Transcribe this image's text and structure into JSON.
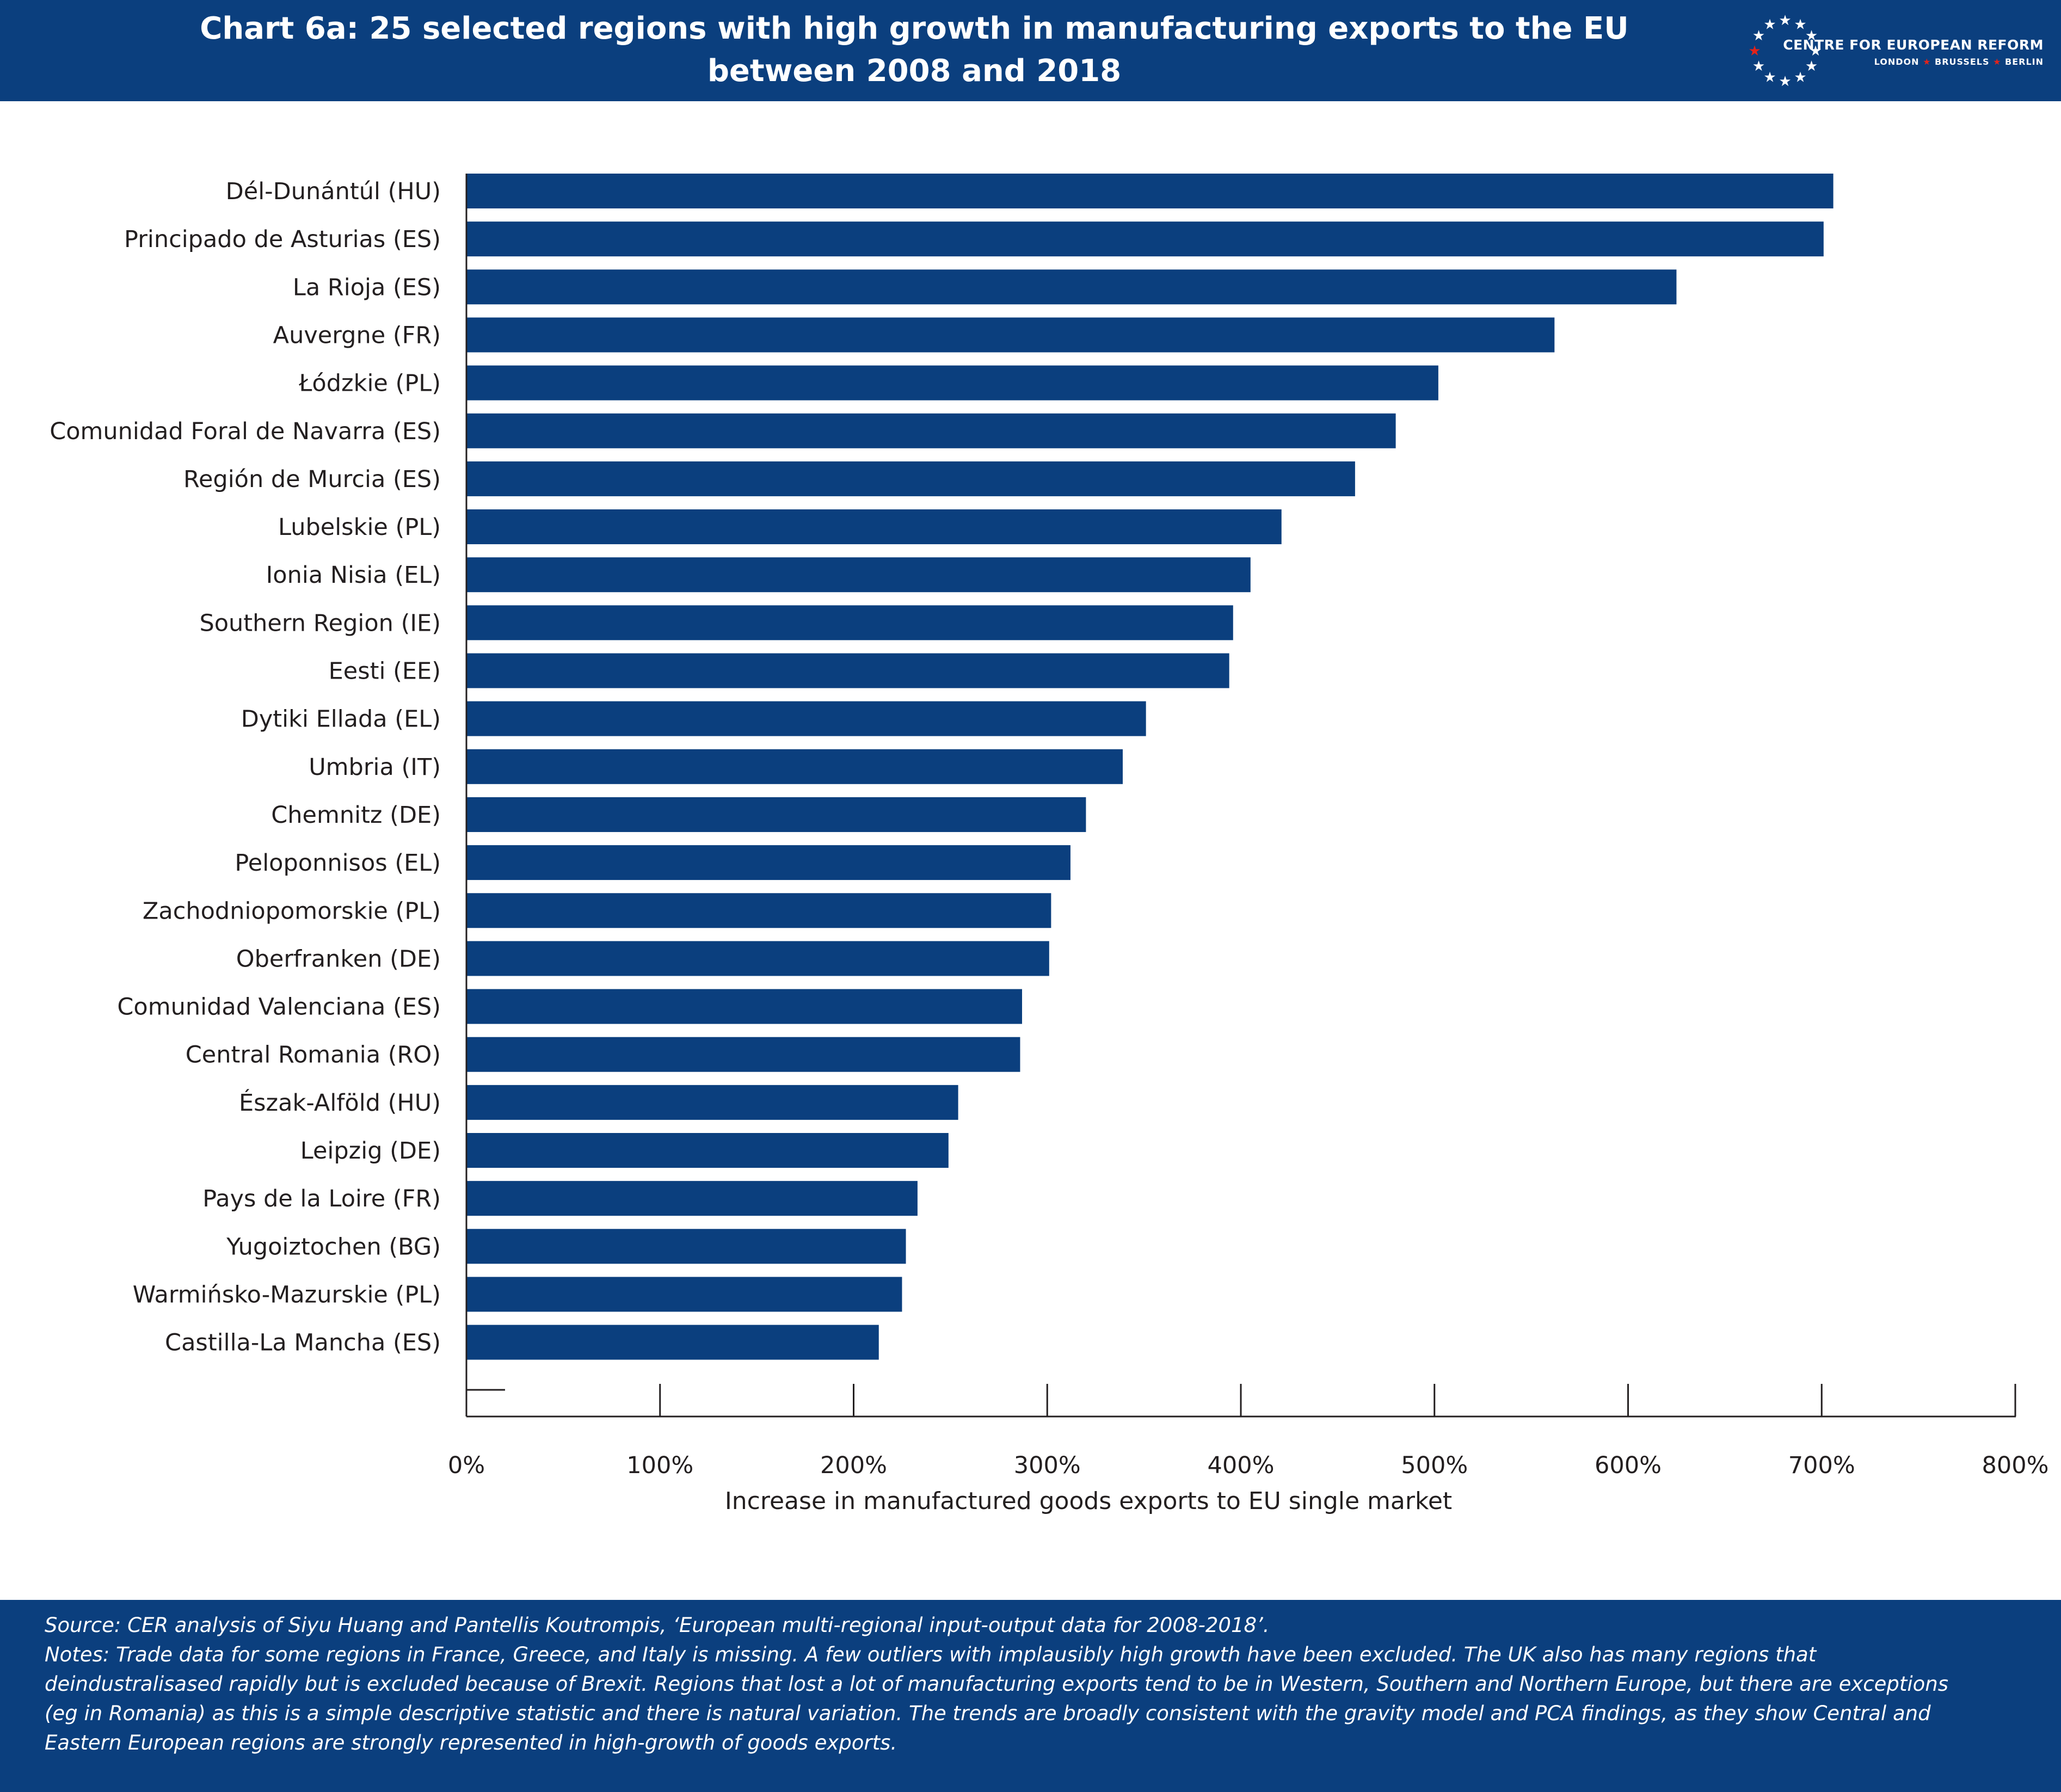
{
  "header": {
    "title_line1": "Chart 6a: 25 selected regions with high growth in manufacturing exports  to the EU",
    "title_line2": "between 2008 and 2018",
    "logo_name": "CENTRE FOR EUROPEAN REFORM",
    "logo_cities": [
      "LONDON",
      "BRUSSELS",
      "BERLIN"
    ]
  },
  "colors": {
    "brand_blue": "#0b3f7e",
    "bar": "#0b3f7e",
    "logo_star_accent": "#e2231a"
  },
  "chart_data": {
    "type": "bar",
    "orientation": "horizontal",
    "categories": [
      "Dél-Dunántúl (HU)",
      "Principado de Asturias (ES)",
      "La Rioja (ES)",
      "Auvergne (FR)",
      "Łódzkie (PL)",
      "Comunidad Foral de Navarra (ES)",
      "Región de Murcia (ES)",
      "Lubelskie (PL)",
      "Ionia Nisia (EL)",
      "Southern Region (IE)",
      "Eesti (EE)",
      "Dytiki Ellada (EL)",
      "Umbria (IT)",
      "Chemnitz (DE)",
      "Peloponnisos (EL)",
      "Zachodniopomorskie (PL)",
      "Oberfranken (DE)",
      "Comunidad Valenciana (ES)",
      "Central Romania (RO)",
      "Észak-Alföld (HU)",
      "Leipzig (DE)",
      "Pays de la Loire (FR)",
      "Yugoiztochen (BG)",
      "Warmińsko-Mazurskie (PL)",
      "Castilla-La Mancha (ES)"
    ],
    "values": [
      706,
      701,
      625,
      562,
      502,
      480,
      459,
      421,
      405,
      396,
      394,
      351,
      339,
      320,
      312,
      302,
      301,
      287,
      286,
      254,
      249,
      233,
      227,
      225,
      213
    ],
    "xlabel": "Increase in manufactured goods exports to EU single market",
    "ylabel": "",
    "xlim": [
      0,
      800
    ],
    "xticks": [
      0,
      100,
      200,
      300,
      400,
      500,
      600,
      700,
      800
    ],
    "xtick_labels": [
      "0%",
      "100%",
      "200%",
      "300%",
      "400%",
      "500%",
      "600%",
      "700%",
      "800%"
    ],
    "grid": false,
    "legend": "none"
  },
  "footer": {
    "source": "Source: CER analysis of Siyu Huang and Pantellis Koutrompis, ‘European multi-regional input-output data for 2008-2018’.",
    "notes_lines": [
      "Notes: Trade data for some regions in France, Greece, and Italy is missing. A few outliers with implausibly high growth have been excluded. The UK also has many regions that",
      "deindustralisased rapidly but is excluded because of Brexit. Regions that lost a lot of manufacturing exports tend to be in Western, Southern and Northern Europe, but there are exceptions",
      "(eg in Romania) as this is a simple descriptive statistic and there is natural variation. The trends are broadly consistent with the gravity model and PCA findings, as they show Central and",
      "Eastern European regions are strongly represented in high-growth of goods exports."
    ]
  }
}
